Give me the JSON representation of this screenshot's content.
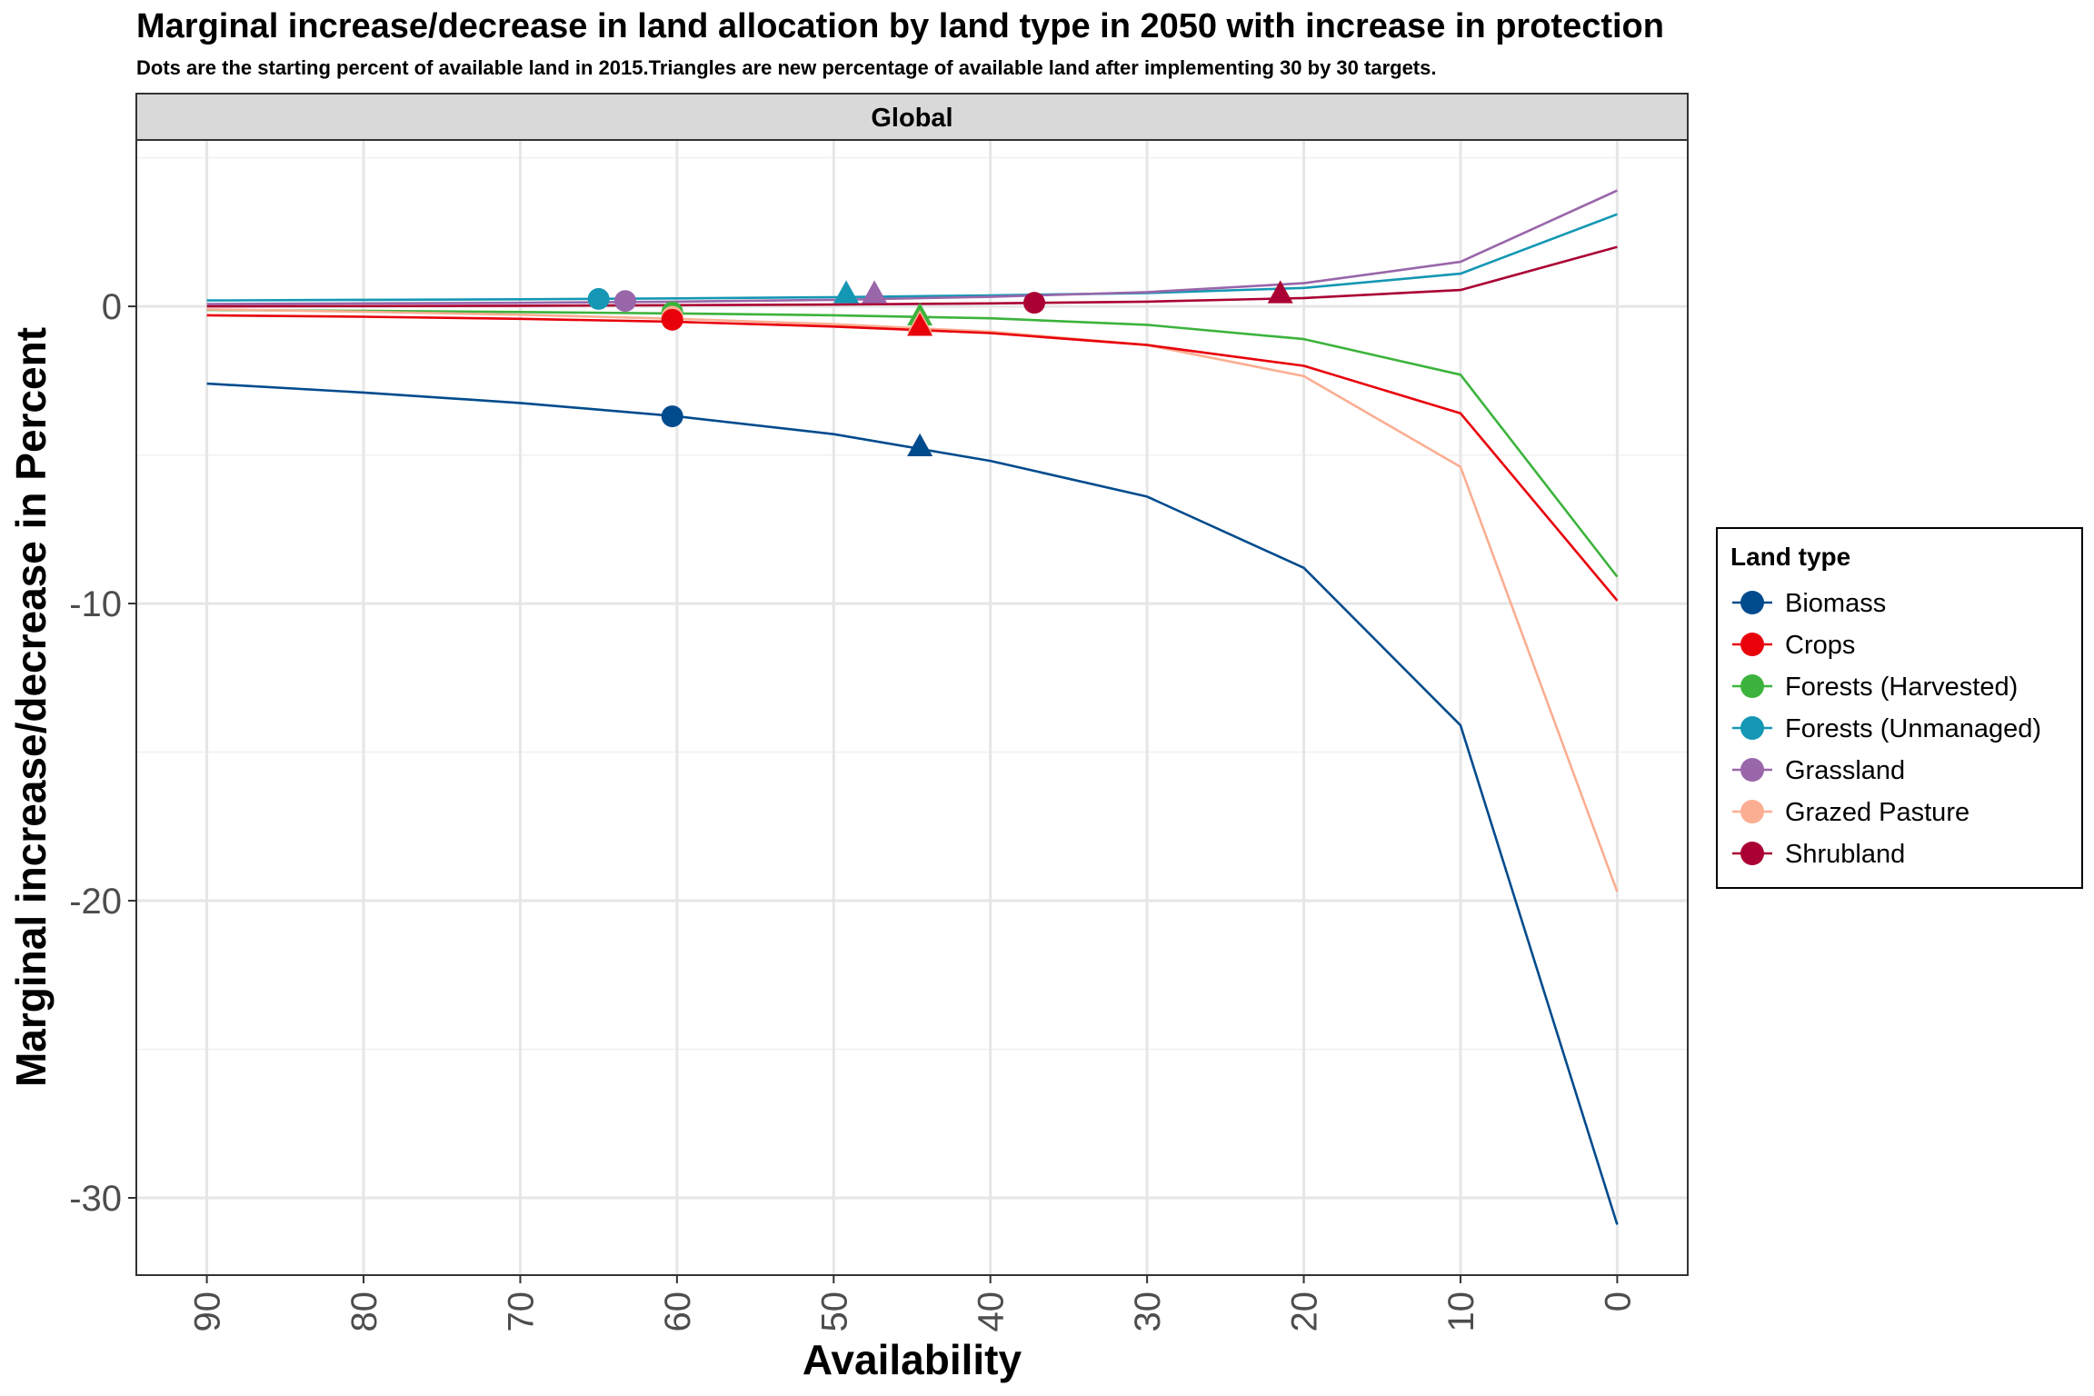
{
  "chart_data": {
    "type": "line",
    "title": "Marginal increase/decrease in land allocation by land type in 2050 with increase in protection",
    "subtitle": "Dots are the starting percent of available land in 2015.Triangles are new percentage of available land after implementing 30 by 30 targets.",
    "facet_label": "Global",
    "xlabel": "Availability",
    "ylabel": "Marginal increase/decrease in Percent",
    "x_reversed": true,
    "xlim": [
      94.5,
      -4.5
    ],
    "ylim": [
      -32.6,
      5.6
    ],
    "x_ticks": [
      "90",
      "80",
      "70",
      "60",
      "50",
      "40",
      "30",
      "20",
      "10",
      "0"
    ],
    "y_ticks": [
      "0",
      "-10",
      "-20",
      "-30"
    ],
    "x": [
      90,
      80,
      70,
      60,
      50,
      40,
      30,
      20,
      10,
      0
    ],
    "legend_title": "Land type",
    "legend_position": "right",
    "grid": true,
    "series": [
      {
        "name": "Biomass",
        "color": "#004B8D",
        "values": [
          -2.6,
          -2.9,
          -3.25,
          -3.7,
          -4.3,
          -5.2,
          -6.4,
          -8.8,
          -14.1,
          -30.9
        ],
        "start_point": {
          "x": 60.3,
          "y": -3.7
        },
        "end_point": {
          "x": 44.5,
          "y": -4.7
        }
      },
      {
        "name": "Crops",
        "color": "#E8000B",
        "values": [
          -0.3,
          -0.35,
          -0.42,
          -0.52,
          -0.68,
          -0.9,
          -1.3,
          -2.0,
          -3.6,
          -9.9
        ],
        "start_point": {
          "x": 60.3,
          "y": -0.45
        },
        "end_point": {
          "x": 44.5,
          "y": -0.65
        }
      },
      {
        "name": "Forests (Harvested)",
        "color": "#3CB33C",
        "values": [
          -0.12,
          -0.15,
          -0.19,
          -0.24,
          -0.3,
          -0.4,
          -0.62,
          -1.1,
          -2.3,
          -9.1
        ],
        "start_point": {
          "x": 60.3,
          "y": -0.2
        },
        "end_point": {
          "x": 44.5,
          "y": -0.3
        }
      },
      {
        "name": "Forests (Unmanaged)",
        "color": "#1497B4",
        "values": [
          0.2,
          0.22,
          0.24,
          0.27,
          0.31,
          0.37,
          0.45,
          0.62,
          1.1,
          3.1
        ],
        "start_point": {
          "x": 65.0,
          "y": 0.25
        },
        "end_point": {
          "x": 49.2,
          "y": 0.45
        }
      },
      {
        "name": "Grassland",
        "color": "#9966AA",
        "values": [
          0.08,
          0.1,
          0.12,
          0.16,
          0.22,
          0.32,
          0.48,
          0.78,
          1.5,
          3.9
        ],
        "start_point": {
          "x": 63.3,
          "y": 0.18
        },
        "end_point": {
          "x": 47.4,
          "y": 0.45
        }
      },
      {
        "name": "Grazed Pasture",
        "color": "#FBAE92",
        "values": [
          -0.1,
          -0.18,
          -0.28,
          -0.42,
          -0.6,
          -0.85,
          -1.3,
          -2.35,
          -5.4,
          -19.7
        ],
        "start_point": {
          "x": 60.3,
          "y": -0.35
        },
        "end_point": {
          "x": 44.5,
          "y": -0.55
        }
      },
      {
        "name": "Shrubland",
        "color": "#AA0033",
        "values": [
          0.0,
          0.01,
          0.02,
          0.04,
          0.06,
          0.1,
          0.16,
          0.28,
          0.55,
          2.0
        ],
        "start_point": {
          "x": 37.2,
          "y": 0.12
        },
        "end_point": {
          "x": 21.5,
          "y": 0.45
        }
      }
    ]
  }
}
